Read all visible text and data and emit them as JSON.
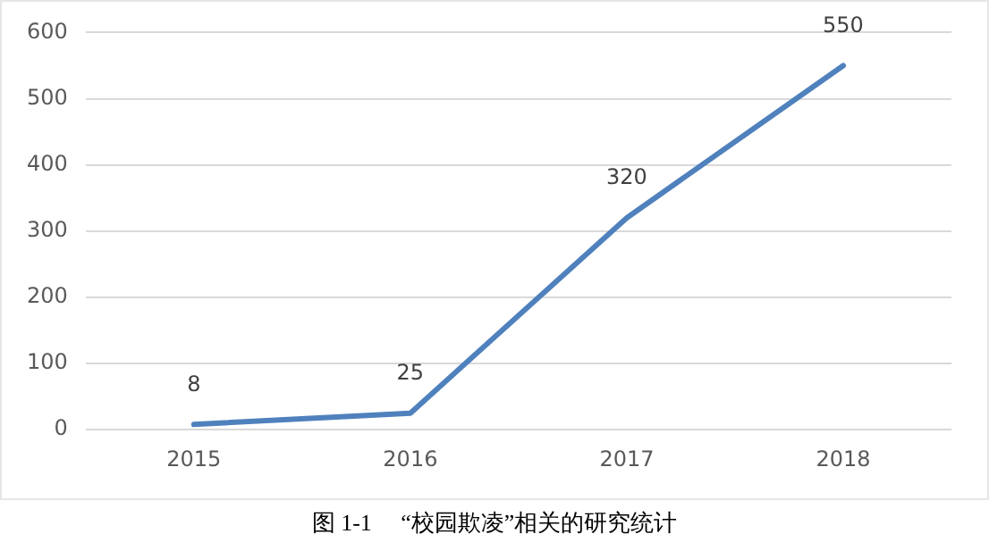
{
  "chart_data": {
    "type": "line",
    "categories": [
      "2015",
      "2016",
      "2017",
      "2018"
    ],
    "values": [
      8,
      25,
      320,
      550
    ],
    "color": "#4f81bd",
    "ylim": [
      0,
      600
    ],
    "yticks": [
      0,
      100,
      200,
      300,
      400,
      500,
      600
    ],
    "grid": "y",
    "legend": false,
    "marker": "none",
    "line_style": "solid",
    "data_labels": true,
    "annotations": [
      "图 1-1　 “校园欺凌”相关的研究统计"
    ]
  }
}
